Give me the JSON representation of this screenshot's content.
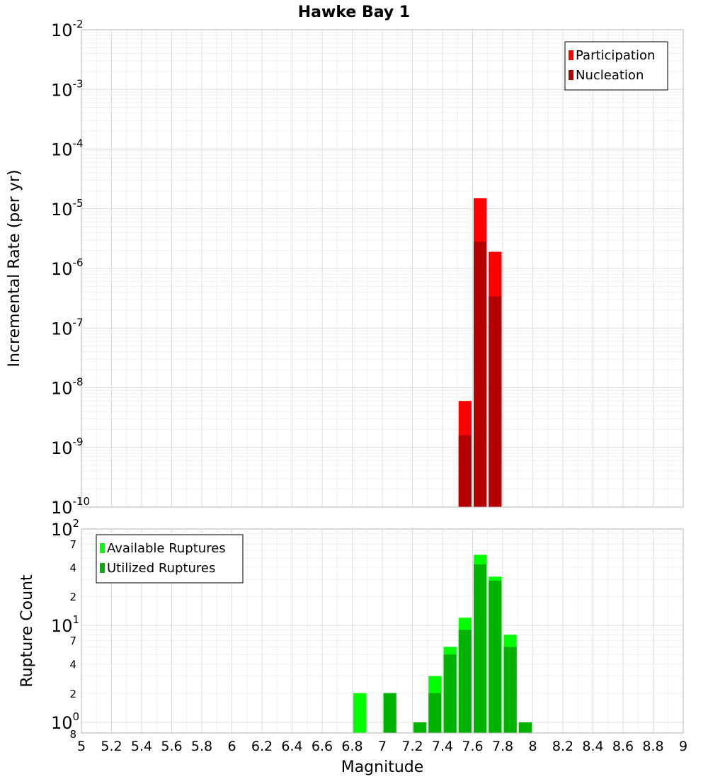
{
  "chart_data": [
    {
      "type": "bar",
      "scale": "log",
      "title": "Hawke Bay 1",
      "xlabel": "",
      "ylabel": "Incremental Rate (per yr)",
      "xlim": [
        5,
        9
      ],
      "ylim_exp": [
        -10,
        -2
      ],
      "y_ticks": [
        {
          "base": "10",
          "exp": "-2"
        },
        {
          "base": "10",
          "exp": "-3"
        },
        {
          "base": "10",
          "exp": "-4"
        },
        {
          "base": "10",
          "exp": "-5"
        },
        {
          "base": "10",
          "exp": "-6"
        },
        {
          "base": "10",
          "exp": "-7"
        },
        {
          "base": "10",
          "exp": "-8"
        },
        {
          "base": "10",
          "exp": "-9"
        },
        {
          "base": "10",
          "exp": "-10"
        }
      ],
      "bin_width": 0.1,
      "series": [
        {
          "name": "Participation",
          "color": "#ff0000",
          "points": [
            {
              "x": 7.55,
              "y": 6e-09
            },
            {
              "x": 7.65,
              "y": 1.5e-05
            },
            {
              "x": 7.75,
              "y": 1.9e-06
            }
          ]
        },
        {
          "name": "Nucleation",
          "color": "#b30000",
          "points": [
            {
              "x": 7.55,
              "y": 1.6e-09
            },
            {
              "x": 7.65,
              "y": 2.8e-06
            },
            {
              "x": 7.75,
              "y": 3.4e-07
            }
          ]
        }
      ],
      "legend": {
        "position": "top-right",
        "entries": [
          "Participation",
          "Nucleation"
        ]
      }
    },
    {
      "type": "bar",
      "scale": "log",
      "title": "",
      "xlabel": "Magnitude",
      "ylabel": "Rupture Count",
      "xlim": [
        5,
        9
      ],
      "x_ticks": [
        "5",
        "5.2",
        "5.4",
        "5.6",
        "5.8",
        "6",
        "6.2",
        "6.4",
        "6.6",
        "6.8",
        "7",
        "7.2",
        "7.4",
        "7.6",
        "7.8",
        "8",
        "8.2",
        "8.4",
        "8.6",
        "8.8",
        "9"
      ],
      "y_ticks": [
        {
          "base": "10",
          "exp": "2"
        },
        {
          "base": "10",
          "exp": "1"
        },
        {
          "base": "10",
          "exp": "0"
        }
      ],
      "y_minor_labels": [
        "7",
        "4",
        "2",
        "7",
        "4",
        "2",
        "8"
      ],
      "bin_width": 0.1,
      "series": [
        {
          "name": "Available Ruptures",
          "color": "#00ff00",
          "points": [
            {
              "x": 6.85,
              "y": 2
            },
            {
              "x": 7.05,
              "y": 2
            },
            {
              "x": 7.25,
              "y": 1
            },
            {
              "x": 7.35,
              "y": 3
            },
            {
              "x": 7.45,
              "y": 6
            },
            {
              "x": 7.55,
              "y": 12
            },
            {
              "x": 7.65,
              "y": 54
            },
            {
              "x": 7.75,
              "y": 32
            },
            {
              "x": 7.85,
              "y": 8
            },
            {
              "x": 7.95,
              "y": 1
            }
          ]
        },
        {
          "name": "Utilized Ruptures",
          "color": "#00b300",
          "points": [
            {
              "x": 7.05,
              "y": 2
            },
            {
              "x": 7.25,
              "y": 1
            },
            {
              "x": 7.35,
              "y": 2
            },
            {
              "x": 7.45,
              "y": 5
            },
            {
              "x": 7.55,
              "y": 9
            },
            {
              "x": 7.65,
              "y": 43
            },
            {
              "x": 7.75,
              "y": 29
            },
            {
              "x": 7.85,
              "y": 6
            },
            {
              "x": 7.95,
              "y": 1
            }
          ]
        }
      ],
      "legend": {
        "position": "top-left",
        "entries": [
          "Available Ruptures",
          "Utilized Ruptures"
        ]
      }
    }
  ]
}
